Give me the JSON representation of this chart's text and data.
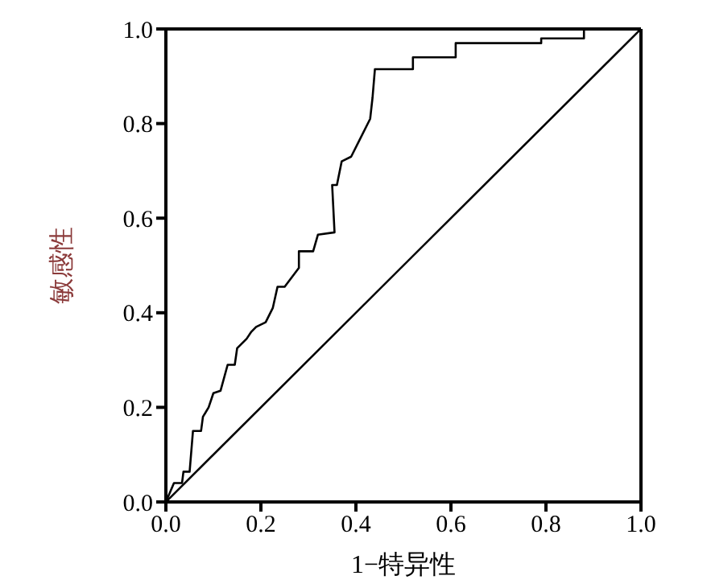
{
  "chart_data": {
    "type": "line",
    "xlabel": "1−特异性",
    "ylabel": "敏感性",
    "xlim": [
      0,
      1
    ],
    "ylim": [
      0,
      1
    ],
    "xticks": [
      {
        "value": 0,
        "label": "0.0"
      },
      {
        "value": 0.2,
        "label": "0.2"
      },
      {
        "value": 0.4,
        "label": "0.4"
      },
      {
        "value": 0.6,
        "label": "0.6"
      },
      {
        "value": 0.8,
        "label": "0.8"
      },
      {
        "value": 1,
        "label": "1.0"
      }
    ],
    "yticks": [
      {
        "value": 0,
        "label": "0.0"
      },
      {
        "value": 0.2,
        "label": "0.2"
      },
      {
        "value": 0.4,
        "label": "0.4"
      },
      {
        "value": 0.6,
        "label": "0.6"
      },
      {
        "value": 0.8,
        "label": "0.8"
      },
      {
        "value": 1,
        "label": "1.0"
      }
    ],
    "legend": false,
    "marker": "none",
    "line_style": "solid",
    "series": [
      {
        "color": "#000000",
        "x": [
          0,
          0.017,
          0.034,
          0.037,
          0.05,
          0.057,
          0.074,
          0.078,
          0.09,
          0.1,
          0.115,
          0.13,
          0.145,
          0.15,
          0.17,
          0.18,
          0.19,
          0.21,
          0.225,
          0.235,
          0.25,
          0.28,
          0.28,
          0.31,
          0.32,
          0.355,
          0.35,
          0.36,
          0.37,
          0.39,
          0.405,
          0.43,
          0.435,
          0.44,
          0.52,
          0.52,
          0.61,
          0.61,
          0.79,
          0.79,
          0.88,
          0.88,
          1
        ],
        "values": [
          0,
          0.04,
          0.04,
          0.064,
          0.064,
          0.15,
          0.15,
          0.18,
          0.2,
          0.23,
          0.235,
          0.29,
          0.29,
          0.325,
          0.345,
          0.36,
          0.37,
          0.38,
          0.41,
          0.455,
          0.455,
          0.495,
          0.53,
          0.53,
          0.565,
          0.57,
          0.67,
          0.67,
          0.72,
          0.73,
          0.76,
          0.81,
          0.855,
          0.915,
          0.915,
          0.94,
          0.94,
          0.97,
          0.97,
          0.98,
          0.98,
          1,
          1
        ]
      },
      {
        "color": "#000000",
        "x": [
          0,
          1
        ],
        "values": [
          0,
          1
        ]
      }
    ]
  }
}
